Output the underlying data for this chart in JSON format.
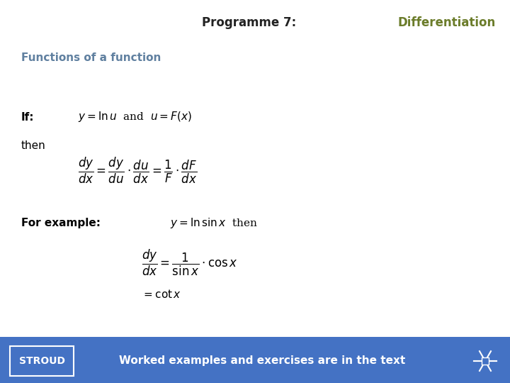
{
  "title_black": "Programme 7:  ",
  "title_green": "Differentiation",
  "section_title": "Functions of a function",
  "footer_bg": "#4472C4",
  "footer_text": "Worked examples and exercises are in the text",
  "footer_label": "STROUD",
  "section_color": "#6080A0",
  "title_black_color": "#222222",
  "title_green_color": "#6B7C2A",
  "bg_color": "#FFFFFF",
  "footer_text_color": "#FFFFFF"
}
